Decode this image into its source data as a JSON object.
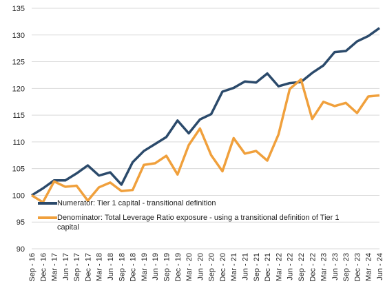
{
  "chart_data": {
    "type": "line",
    "categories": [
      "Sep - 16",
      "Dec - 16",
      "Mar - 17",
      "Jun - 17",
      "Sep - 17",
      "Dec - 17",
      "Mar - 18",
      "Jun - 18",
      "Sep - 18",
      "Dec - 18",
      "Mar - 19",
      "Jun - 19",
      "Sep - 19",
      "Dec - 19",
      "Mar - 20",
      "Jun - 20",
      "Sep - 20",
      "Dec - 20",
      "Mar - 21",
      "Jun - 21",
      "Sep - 21",
      "Dec - 21",
      "Mar - 22",
      "Jun - 22",
      "Sep - 22",
      "Dec - 22",
      "Mar - 23",
      "Jun - 23",
      "Sep - 23",
      "Dec - 23",
      "Mar - 24",
      "Jun - 24"
    ],
    "series": [
      {
        "name": "Numerator: Tier 1 capital - transitional definition",
        "color": "#2b4a6b",
        "values": [
          100,
          101.3,
          102.8,
          102.8,
          104.1,
          105.6,
          103.7,
          104.3,
          102.0,
          106.2,
          108.3,
          109.6,
          110.9,
          114.0,
          111.6,
          114.2,
          115.2,
          119.4,
          120.1,
          121.3,
          121.1,
          122.8,
          120.4,
          121.0,
          121.2,
          122.9,
          124.3,
          126.8,
          127.0,
          128.8,
          129.8,
          131.3
        ]
      },
      {
        "name": "Denominator: Total Leverage Ratio exposure - using a transitional definition of Tier 1 capital",
        "color": "#f0a03c",
        "values": [
          100,
          98.7,
          102.6,
          101.6,
          101.8,
          99.0,
          101.5,
          102.4,
          100.8,
          101.0,
          105.7,
          106.0,
          107.4,
          103.9,
          109.4,
          112.5,
          107.5,
          104.5,
          110.7,
          107.8,
          108.3,
          106.5,
          111.4,
          119.9,
          121.7,
          114.3,
          117.5,
          116.7,
          117.3,
          115.4,
          118.5,
          118.7
        ]
      }
    ],
    "ylim": [
      90,
      135
    ],
    "yticks": [
      90,
      95,
      100,
      105,
      110,
      115,
      120,
      125,
      130,
      135
    ],
    "grid": true
  }
}
